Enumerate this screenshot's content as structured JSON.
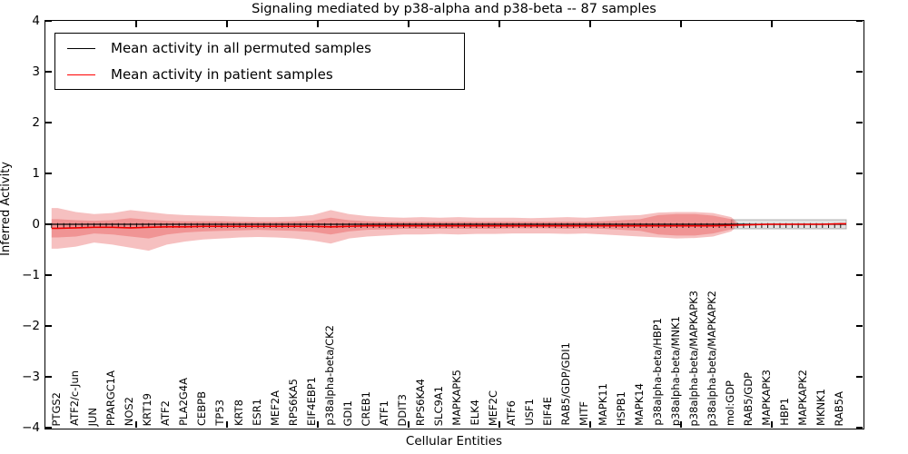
{
  "colors": {
    "axis": "#000000",
    "band_red_fill": "rgba(225,45,45,0.30)",
    "band_gray_fill": "rgba(125,125,125,0.22)",
    "band_gray_edge": "rgba(95,95,95,0.45)",
    "permuted_line": "#000000",
    "patient_line": "#f00000"
  },
  "legend": {
    "items": [
      {
        "label": "Mean activity in all permuted samples",
        "color": "#000000"
      },
      {
        "label": "Mean activity in patient samples",
        "color": "#ff0000"
      }
    ]
  },
  "chart_data": {
    "type": "line",
    "title": "Signaling mediated by p38-alpha and p38-beta -- 87 samples",
    "xlabel": "Cellular Entities",
    "ylabel": "Inferred Activity",
    "ylim": [
      -4,
      4
    ],
    "ytick_labels": [
      "4",
      "3",
      "2",
      "1",
      "0",
      "−1",
      "−2",
      "−3",
      "−4"
    ],
    "grid": false,
    "legend_position": "upper left",
    "categories": [
      "PTGS2",
      "ATF2/c-Jun",
      "JUN",
      "PPARGC1A",
      "NOS2",
      "KRT19",
      "ATF2",
      "PLA2G4A",
      "CEBPB",
      "TP53",
      "KRT8",
      "ESR1",
      "MEF2A",
      "RPS6KA5",
      "EIF4EBP1",
      "p38alpha-beta/CK2",
      "GDI1",
      "CREB1",
      "ATF1",
      "DDIT3",
      "RPS6KA4",
      "SLC9A1",
      "MAPKAPK5",
      "ELK4",
      "MEF2C",
      "ATF6",
      "USF1",
      "EIF4E",
      "RAB5/GDP/GDI1",
      "MITF",
      "MAPK11",
      "HSPB1",
      "MAPK14",
      "p38alpha-beta/HBP1",
      "p38alpha-beta/MNK1",
      "p38alpha-beta/MAPKAPK3",
      "p38alpha-beta/MAPKAPK2",
      "mol:GDP",
      "RAB5/GDP",
      "MAPKAPK3",
      "HBP1",
      "MAPKAPK2",
      "MKNK1",
      "RAB5A"
    ],
    "series": [
      {
        "name": "Mean activity in all permuted samples",
        "color": "#000000",
        "values": [
          0,
          0,
          0,
          0,
          0,
          0,
          0,
          0,
          0,
          0,
          0,
          0,
          0,
          0,
          0,
          0,
          0,
          0,
          0,
          0,
          0,
          0,
          0,
          0,
          0,
          0,
          0,
          0,
          0,
          0,
          0,
          0,
          0,
          0,
          0,
          0,
          0,
          0,
          0,
          0,
          0,
          0,
          0,
          0
        ]
      },
      {
        "name": "Mean activity in patient samples",
        "color": "#f00000",
        "values": [
          -0.08,
          -0.07,
          -0.06,
          -0.06,
          -0.07,
          -0.06,
          -0.05,
          -0.05,
          -0.04,
          -0.04,
          -0.04,
          -0.04,
          -0.04,
          -0.04,
          -0.04,
          -0.05,
          -0.04,
          -0.03,
          -0.03,
          -0.03,
          -0.03,
          -0.03,
          -0.03,
          -0.03,
          -0.03,
          -0.03,
          -0.03,
          -0.03,
          -0.03,
          -0.03,
          -0.03,
          -0.03,
          -0.03,
          -0.03,
          -0.03,
          -0.03,
          -0.03,
          -0.02,
          -0.01,
          0,
          0,
          0,
          0,
          0.01
        ]
      }
    ],
    "bands": {
      "patient_outer": {
        "end_index": 37,
        "top": [
          0.32,
          0.24,
          0.2,
          0.22,
          0.28,
          0.24,
          0.2,
          0.18,
          0.17,
          0.16,
          0.15,
          0.14,
          0.14,
          0.15,
          0.18,
          0.28,
          0.2,
          0.16,
          0.14,
          0.13,
          0.14,
          0.13,
          0.14,
          0.13,
          0.13,
          0.13,
          0.12,
          0.13,
          0.14,
          0.13,
          0.15,
          0.17,
          0.18,
          0.23,
          0.24,
          0.24,
          0.22,
          0.14
        ],
        "bottom": [
          -0.48,
          -0.44,
          -0.36,
          -0.4,
          -0.46,
          -0.52,
          -0.4,
          -0.34,
          -0.3,
          -0.28,
          -0.26,
          -0.25,
          -0.26,
          -0.28,
          -0.32,
          -0.38,
          -0.28,
          -0.24,
          -0.22,
          -0.2,
          -0.2,
          -0.19,
          -0.2,
          -0.19,
          -0.19,
          -0.18,
          -0.18,
          -0.18,
          -0.19,
          -0.18,
          -0.2,
          -0.22,
          -0.24,
          -0.26,
          -0.28,
          -0.27,
          -0.24,
          -0.14
        ]
      },
      "patient_inner": {
        "end_index": 37,
        "top": [
          0.1,
          0.08,
          0.07,
          0.08,
          0.12,
          0.09,
          0.07,
          0.06,
          0.06,
          0.06,
          0.05,
          0.05,
          0.05,
          0.06,
          0.07,
          0.13,
          0.08,
          0.06,
          0.05,
          0.05,
          0.05,
          0.05,
          0.05,
          0.05,
          0.05,
          0.05,
          0.05,
          0.05,
          0.05,
          0.05,
          0.06,
          0.08,
          0.1,
          0.18,
          0.2,
          0.2,
          0.17,
          0.1
        ],
        "bottom": [
          -0.26,
          -0.24,
          -0.18,
          -0.2,
          -0.24,
          -0.28,
          -0.2,
          -0.16,
          -0.14,
          -0.13,
          -0.12,
          -0.11,
          -0.12,
          -0.13,
          -0.15,
          -0.2,
          -0.14,
          -0.11,
          -0.1,
          -0.09,
          -0.09,
          -0.09,
          -0.09,
          -0.09,
          -0.09,
          -0.08,
          -0.08,
          -0.08,
          -0.09,
          -0.08,
          -0.09,
          -0.11,
          -0.13,
          -0.2,
          -0.22,
          -0.22,
          -0.18,
          -0.1
        ]
      },
      "permuted": {
        "from_index": 37,
        "top": 0.09,
        "bottom": -0.09
      }
    }
  }
}
